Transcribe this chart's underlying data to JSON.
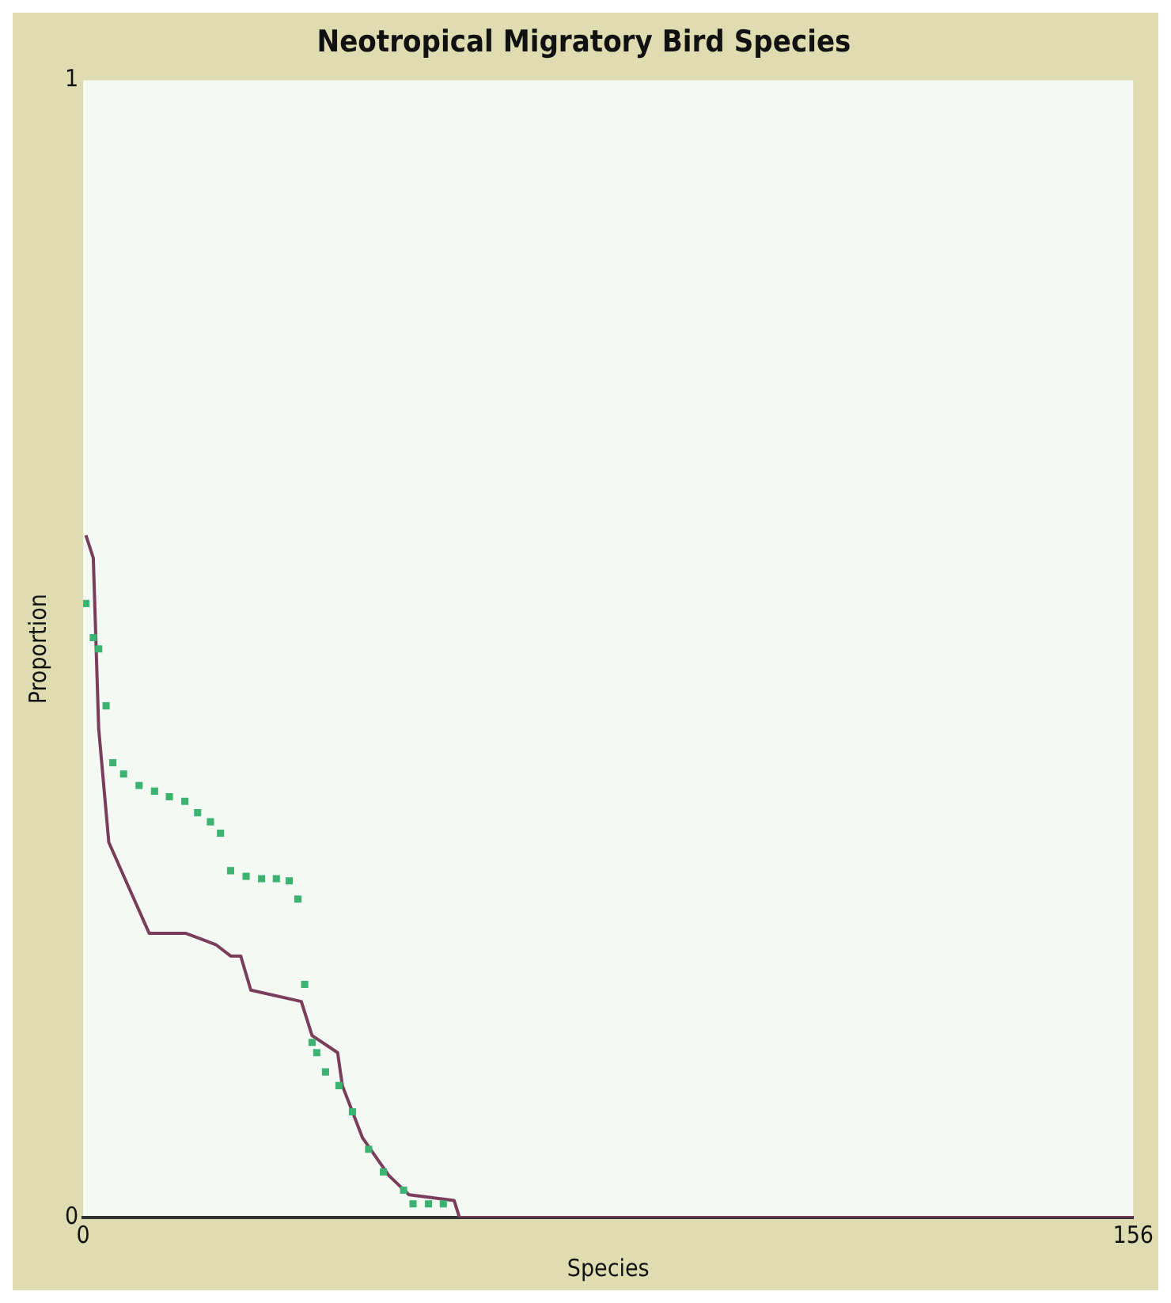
{
  "chart_data": {
    "type": "scatter",
    "title": "Neotropical Migratory Bird Species",
    "xlabel": "Species",
    "ylabel": "Proportion",
    "xlim": [
      0,
      156
    ],
    "xticks": [
      0,
      156
    ],
    "ylim": [
      0,
      1
    ],
    "yticks": [
      0,
      1
    ],
    "grid": false,
    "legend": false,
    "series": [
      {
        "type": "line",
        "color": "#7a3d5c",
        "marker": "none",
        "x": [
          0.4,
          1.5,
          2.3,
          3.8,
          6.8,
          9.8,
          15.2,
          19.7,
          21.9,
          23.4,
          24.9,
          32.4,
          34,
          37.8,
          38.5,
          41.5,
          45.4,
          48.4,
          55.1,
          55.9,
          156
        ],
        "values": [
          0.6,
          0.58,
          0.43,
          0.33,
          0.29,
          0.25,
          0.25,
          0.24,
          0.23,
          0.23,
          0.2,
          0.19,
          0.16,
          0.145,
          0.116,
          0.07,
          0.037,
          0.02,
          0.015,
          0,
          0
        ]
      },
      {
        "color": "#3cb371",
        "marker": "square",
        "x": [
          0.4,
          1.5,
          2.3,
          3.4,
          4.4,
          6,
          8.3,
          10.6,
          12.8,
          15.1,
          17,
          18.9,
          20.4,
          21.9,
          24.2,
          26.5,
          28.7,
          30.6,
          31.9,
          32.9,
          34,
          34.7,
          36,
          38,
          40,
          42.4,
          44.6,
          47.6,
          49,
          51.3,
          53.5
        ],
        "values": [
          0.54,
          0.51,
          0.5,
          0.45,
          0.4,
          0.39,
          0.38,
          0.375,
          0.37,
          0.366,
          0.356,
          0.348,
          0.338,
          0.305,
          0.3,
          0.298,
          0.298,
          0.296,
          0.28,
          0.205,
          0.154,
          0.145,
          0.128,
          0.116,
          0.093,
          0.06,
          0.04,
          0.024,
          0.012,
          0.012,
          0.012
        ]
      }
    ]
  }
}
